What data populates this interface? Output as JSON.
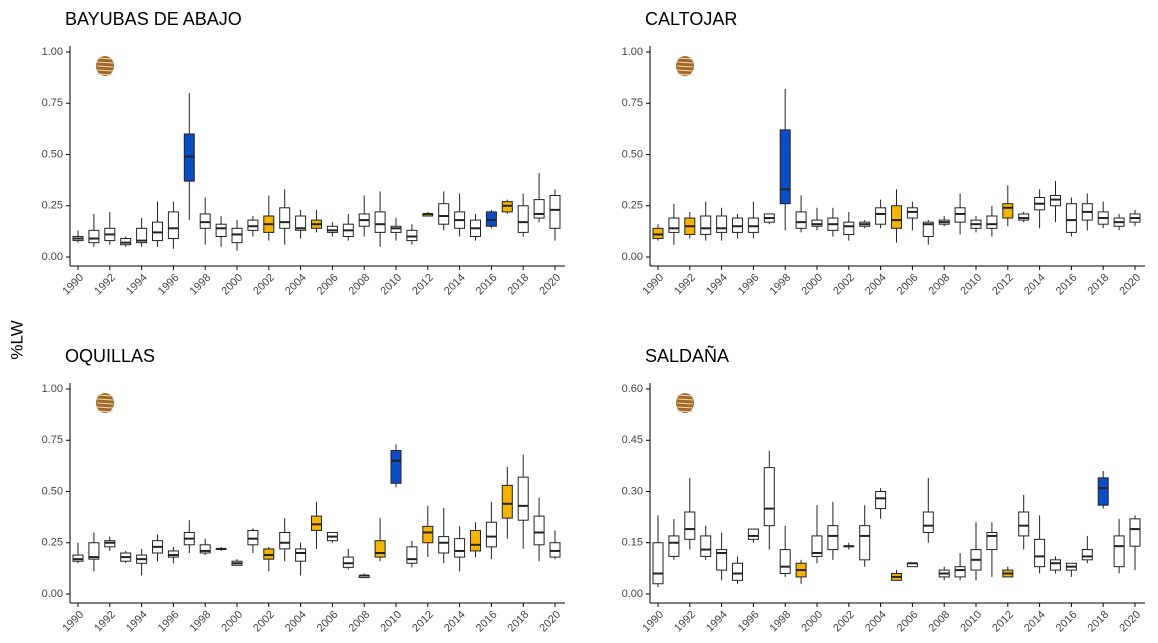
{
  "y_label": "%LW",
  "chart_data": [
    {
      "type": "box",
      "title": "BAYUBAS DE ABAJO",
      "categories": [
        "1990",
        null,
        "1992",
        null,
        "1994",
        null,
        "1996",
        null,
        "1998",
        null,
        "2000",
        null,
        "2002",
        null,
        "2004",
        null,
        "2006",
        null,
        "2008",
        null,
        "2010",
        null,
        "2012",
        null,
        "2014",
        null,
        "2016",
        null,
        "2018",
        null,
        "2020"
      ],
      "low": [
        0.07,
        0.05,
        0.06,
        0.05,
        0.05,
        0.05,
        0.04,
        0.18,
        0.06,
        0.05,
        0.03,
        0.1,
        0.08,
        0.06,
        0.09,
        0.12,
        0.1,
        0.08,
        0.1,
        0.05,
        0.08,
        0.06,
        0.2,
        0.13,
        0.1,
        0.08,
        0.14,
        0.21,
        0.1,
        0.17,
        0.08
      ],
      "q1": [
        0.08,
        0.07,
        0.08,
        0.06,
        0.07,
        0.08,
        0.09,
        0.37,
        0.14,
        0.1,
        0.07,
        0.13,
        0.12,
        0.14,
        0.13,
        0.14,
        0.12,
        0.1,
        0.15,
        0.12,
        0.12,
        0.08,
        0.2,
        0.16,
        0.14,
        0.1,
        0.15,
        0.22,
        0.12,
        0.19,
        0.14
      ],
      "median": [
        0.09,
        0.09,
        0.11,
        0.07,
        0.08,
        0.12,
        0.14,
        0.49,
        0.17,
        0.14,
        0.11,
        0.15,
        0.16,
        0.17,
        0.14,
        0.16,
        0.13,
        0.13,
        0.18,
        0.16,
        0.14,
        0.1,
        0.21,
        0.2,
        0.18,
        0.14,
        0.18,
        0.25,
        0.17,
        0.21,
        0.23
      ],
      "q3": [
        0.1,
        0.13,
        0.14,
        0.09,
        0.14,
        0.17,
        0.22,
        0.6,
        0.21,
        0.16,
        0.14,
        0.18,
        0.2,
        0.24,
        0.2,
        0.18,
        0.15,
        0.16,
        0.21,
        0.22,
        0.15,
        0.13,
        0.21,
        0.26,
        0.22,
        0.18,
        0.22,
        0.27,
        0.25,
        0.28,
        0.3
      ],
      "high": [
        0.13,
        0.21,
        0.22,
        0.1,
        0.19,
        0.27,
        0.27,
        0.8,
        0.29,
        0.2,
        0.18,
        0.2,
        0.3,
        0.33,
        0.23,
        0.23,
        0.17,
        0.21,
        0.3,
        0.32,
        0.19,
        0.16,
        0.22,
        0.32,
        0.31,
        0.21,
        0.23,
        0.28,
        0.31,
        0.41,
        0.33
      ],
      "colors": [
        "#ffffff",
        "#ffffff",
        "#ffffff",
        "#ffffff",
        "#ffffff",
        "#ffffff",
        "#ffffff",
        "#0a4dc7",
        "#ffffff",
        "#ffffff",
        "#ffffff",
        "#ffffff",
        "#f5b400",
        "#ffffff",
        "#ffffff",
        "#f5b400",
        "#ffffff",
        "#ffffff",
        "#ffffff",
        "#ffffff",
        "#ffffff",
        "#ffffff",
        "#f5b400",
        "#ffffff",
        "#ffffff",
        "#ffffff",
        "#0a4dc7",
        "#f5b400",
        "#ffffff",
        "#ffffff",
        "#ffffff"
      ],
      "ylim": [
        0,
        1
      ],
      "yticks": [
        {
          "value": 0,
          "label": "0.00"
        },
        {
          "value": 0.25,
          "label": "0.25"
        },
        {
          "value": 0.5,
          "label": "0.50"
        },
        {
          "value": 0.75,
          "label": "0.75"
        },
        {
          "value": 1,
          "label": "1.00"
        }
      ]
    },
    {
      "type": "box",
      "title": "CALTOJAR",
      "categories": [
        "1990",
        null,
        "1992",
        null,
        "1994",
        null,
        "1996",
        null,
        "1998",
        null,
        "2000",
        null,
        "2002",
        null,
        "2004",
        null,
        "2006",
        null,
        "2008",
        null,
        "2010",
        null,
        "2012",
        null,
        "2014",
        null,
        "2016",
        null,
        "2018",
        null,
        "2020"
      ],
      "low": [
        0.08,
        0.06,
        0.09,
        0.08,
        0.08,
        0.09,
        0.09,
        0.16,
        0.13,
        0.12,
        0.13,
        0.1,
        0.08,
        0.14,
        0.14,
        0.07,
        0.13,
        0.06,
        0.15,
        0.11,
        0.12,
        0.1,
        0.15,
        0.17,
        0.14,
        0.17,
        0.1,
        0.13,
        0.14,
        0.13,
        0.15
      ],
      "q1": [
        0.09,
        0.12,
        0.11,
        0.11,
        0.12,
        0.12,
        0.12,
        0.17,
        0.26,
        0.14,
        0.15,
        0.13,
        0.11,
        0.15,
        0.16,
        0.14,
        0.19,
        0.1,
        0.16,
        0.17,
        0.14,
        0.14,
        0.19,
        0.18,
        0.23,
        0.25,
        0.12,
        0.18,
        0.16,
        0.15,
        0.17
      ],
      "median": [
        0.11,
        0.14,
        0.15,
        0.14,
        0.14,
        0.15,
        0.15,
        0.19,
        0.33,
        0.17,
        0.16,
        0.16,
        0.15,
        0.16,
        0.21,
        0.18,
        0.22,
        0.16,
        0.17,
        0.21,
        0.16,
        0.16,
        0.24,
        0.19,
        0.26,
        0.28,
        0.18,
        0.22,
        0.19,
        0.17,
        0.19
      ],
      "q3": [
        0.14,
        0.19,
        0.19,
        0.2,
        0.2,
        0.19,
        0.19,
        0.21,
        0.62,
        0.22,
        0.18,
        0.19,
        0.17,
        0.17,
        0.24,
        0.25,
        0.24,
        0.17,
        0.18,
        0.24,
        0.18,
        0.2,
        0.26,
        0.21,
        0.29,
        0.3,
        0.26,
        0.26,
        0.22,
        0.19,
        0.21
      ],
      "high": [
        0.16,
        0.26,
        0.22,
        0.27,
        0.24,
        0.21,
        0.27,
        0.21,
        0.82,
        0.3,
        0.24,
        0.24,
        0.22,
        0.18,
        0.28,
        0.33,
        0.27,
        0.18,
        0.2,
        0.31,
        0.2,
        0.25,
        0.35,
        0.22,
        0.33,
        0.37,
        0.29,
        0.31,
        0.27,
        0.21,
        0.23
      ],
      "colors": [
        "#f5b400",
        "#ffffff",
        "#f5b400",
        "#ffffff",
        "#ffffff",
        "#ffffff",
        "#ffffff",
        "#ffffff",
        "#0a4dc7",
        "#ffffff",
        "#ffffff",
        "#ffffff",
        "#ffffff",
        "#ffffff",
        "#ffffff",
        "#f5b400",
        "#ffffff",
        "#ffffff",
        "#ffffff",
        "#ffffff",
        "#ffffff",
        "#ffffff",
        "#f5b400",
        "#ffffff",
        "#ffffff",
        "#ffffff",
        "#ffffff",
        "#ffffff",
        "#ffffff",
        "#ffffff",
        "#ffffff"
      ],
      "ylim": [
        0,
        1
      ],
      "yticks": [
        {
          "value": 0,
          "label": "0.00"
        },
        {
          "value": 0.25,
          "label": "0.25"
        },
        {
          "value": 0.5,
          "label": "0.50"
        },
        {
          "value": 0.75,
          "label": "0.75"
        },
        {
          "value": 1,
          "label": "1.00"
        }
      ]
    },
    {
      "type": "box",
      "title": "OQUILLAS",
      "categories": [
        "1990",
        null,
        "1992",
        null,
        "1994",
        null,
        "1996",
        null,
        "1998",
        null,
        "2000",
        null,
        "2002",
        null,
        "2004",
        null,
        "2006",
        null,
        "2008",
        null,
        "2010",
        null,
        "2012",
        null,
        "2014",
        null,
        "2016",
        null,
        "2018",
        null,
        "2020"
      ],
      "low": [
        0.15,
        0.11,
        0.21,
        0.15,
        0.09,
        0.16,
        0.15,
        0.2,
        0.19,
        0.21,
        0.14,
        0.2,
        0.11,
        0.16,
        0.09,
        0.22,
        0.25,
        0.12,
        0.08,
        0.16,
        0.52,
        0.13,
        0.18,
        0.15,
        0.11,
        0.18,
        0.17,
        0.27,
        0.22,
        0.16,
        0.17
      ],
      "q1": [
        0.16,
        0.17,
        0.23,
        0.16,
        0.15,
        0.2,
        0.18,
        0.24,
        0.2,
        0.22,
        0.14,
        0.24,
        0.17,
        0.22,
        0.16,
        0.31,
        0.26,
        0.13,
        0.08,
        0.18,
        0.54,
        0.15,
        0.25,
        0.2,
        0.18,
        0.21,
        0.23,
        0.37,
        0.36,
        0.24,
        0.18
      ],
      "median": [
        0.17,
        0.18,
        0.25,
        0.18,
        0.17,
        0.23,
        0.19,
        0.27,
        0.21,
        0.22,
        0.15,
        0.27,
        0.19,
        0.25,
        0.2,
        0.34,
        0.28,
        0.15,
        0.09,
        0.2,
        0.65,
        0.17,
        0.3,
        0.25,
        0.21,
        0.24,
        0.28,
        0.44,
        0.43,
        0.3,
        0.21
      ],
      "q3": [
        0.19,
        0.25,
        0.26,
        0.2,
        0.19,
        0.26,
        0.21,
        0.3,
        0.24,
        0.22,
        0.16,
        0.31,
        0.22,
        0.3,
        0.22,
        0.38,
        0.3,
        0.18,
        0.09,
        0.26,
        0.7,
        0.23,
        0.33,
        0.28,
        0.27,
        0.31,
        0.35,
        0.53,
        0.57,
        0.38,
        0.25
      ],
      "high": [
        0.25,
        0.3,
        0.28,
        0.21,
        0.22,
        0.29,
        0.23,
        0.36,
        0.27,
        0.23,
        0.17,
        0.32,
        0.23,
        0.37,
        0.25,
        0.45,
        0.3,
        0.22,
        0.1,
        0.37,
        0.73,
        0.26,
        0.43,
        0.42,
        0.33,
        0.35,
        0.45,
        0.62,
        0.68,
        0.47,
        0.31
      ],
      "colors": [
        "#ffffff",
        "#ffffff",
        "#ffffff",
        "#ffffff",
        "#ffffff",
        "#ffffff",
        "#ffffff",
        "#ffffff",
        "#ffffff",
        "#ffffff",
        "#ffffff",
        "#ffffff",
        "#f5b400",
        "#ffffff",
        "#ffffff",
        "#f5b400",
        "#ffffff",
        "#ffffff",
        "#ffffff",
        "#f5b400",
        "#0a4dc7",
        "#ffffff",
        "#f5b400",
        "#ffffff",
        "#ffffff",
        "#f5b400",
        "#ffffff",
        "#f5b400",
        "#ffffff",
        "#ffffff",
        "#ffffff"
      ],
      "ylim": [
        0,
        1
      ],
      "yticks": [
        {
          "value": 0,
          "label": "0.00"
        },
        {
          "value": 0.25,
          "label": "0.25"
        },
        {
          "value": 0.5,
          "label": "0.50"
        },
        {
          "value": 0.75,
          "label": "0.75"
        },
        {
          "value": 1,
          "label": "1.00"
        }
      ]
    },
    {
      "type": "box",
      "title": "SALDAÑA",
      "categories": [
        "1990",
        null,
        "1992",
        null,
        "1994",
        null,
        "1996",
        null,
        "1998",
        null,
        "2000",
        null,
        "2002",
        null,
        "2004",
        null,
        "2006",
        null,
        "2008",
        null,
        "2010",
        null,
        "2012",
        null,
        "2014",
        null,
        "2016",
        null,
        "2018",
        null,
        "2020"
      ],
      "low": [
        0.02,
        0.1,
        0.13,
        0.1,
        0.04,
        0.03,
        0.15,
        0.13,
        0.05,
        0.03,
        0.09,
        0.1,
        0.13,
        0.08,
        0.22,
        0.04,
        0.08,
        0.15,
        0.04,
        0.04,
        0.04,
        0.05,
        0.05,
        0.13,
        0.06,
        0.06,
        0.05,
        0.09,
        0.25,
        0.06,
        0.07
      ],
      "q1": [
        0.03,
        0.11,
        0.16,
        0.11,
        0.07,
        0.04,
        0.16,
        0.2,
        0.06,
        0.05,
        0.11,
        0.13,
        0.14,
        0.1,
        0.25,
        0.04,
        0.08,
        0.18,
        0.05,
        0.05,
        0.07,
        0.13,
        0.05,
        0.17,
        0.08,
        0.07,
        0.07,
        0.1,
        0.26,
        0.08,
        0.14
      ],
      "median": [
        0.06,
        0.15,
        0.19,
        0.13,
        0.12,
        0.06,
        0.17,
        0.25,
        0.08,
        0.07,
        0.12,
        0.17,
        0.14,
        0.17,
        0.28,
        0.05,
        0.09,
        0.2,
        0.06,
        0.07,
        0.1,
        0.17,
        0.06,
        0.2,
        0.11,
        0.09,
        0.08,
        0.11,
        0.31,
        0.14,
        0.19
      ],
      "q3": [
        0.15,
        0.17,
        0.24,
        0.17,
        0.13,
        0.09,
        0.19,
        0.37,
        0.13,
        0.09,
        0.17,
        0.2,
        0.14,
        0.2,
        0.3,
        0.06,
        0.09,
        0.24,
        0.07,
        0.08,
        0.13,
        0.18,
        0.07,
        0.24,
        0.16,
        0.1,
        0.09,
        0.13,
        0.34,
        0.17,
        0.22
      ],
      "high": [
        0.23,
        0.22,
        0.34,
        0.2,
        0.18,
        0.11,
        0.19,
        0.42,
        0.2,
        0.1,
        0.26,
        0.27,
        0.15,
        0.26,
        0.31,
        0.07,
        0.09,
        0.34,
        0.08,
        0.12,
        0.21,
        0.21,
        0.08,
        0.29,
        0.23,
        0.11,
        0.09,
        0.17,
        0.36,
        0.22,
        0.23
      ],
      "colors": [
        "#ffffff",
        "#ffffff",
        "#ffffff",
        "#ffffff",
        "#ffffff",
        "#ffffff",
        "#ffffff",
        "#ffffff",
        "#ffffff",
        "#f5b400",
        "#ffffff",
        "#ffffff",
        "#f5b400",
        "#ffffff",
        "#ffffff",
        "#f5b400",
        "#ffffff",
        "#ffffff",
        "#ffffff",
        "#ffffff",
        "#ffffff",
        "#ffffff",
        "#f5b400",
        "#ffffff",
        "#ffffff",
        "#ffffff",
        "#ffffff",
        "#ffffff",
        "#0a4dc7",
        "#ffffff",
        "#ffffff"
      ],
      "ylim": [
        0,
        0.6
      ],
      "yticks": [
        {
          "value": 0,
          "label": "0.00"
        },
        {
          "value": 0.15,
          "label": "0.15"
        },
        {
          "value": 0.3,
          "label": "0.30"
        },
        {
          "value": 0.45,
          "label": "0.45"
        },
        {
          "value": 0.6,
          "label": "0.60"
        }
      ]
    }
  ]
}
